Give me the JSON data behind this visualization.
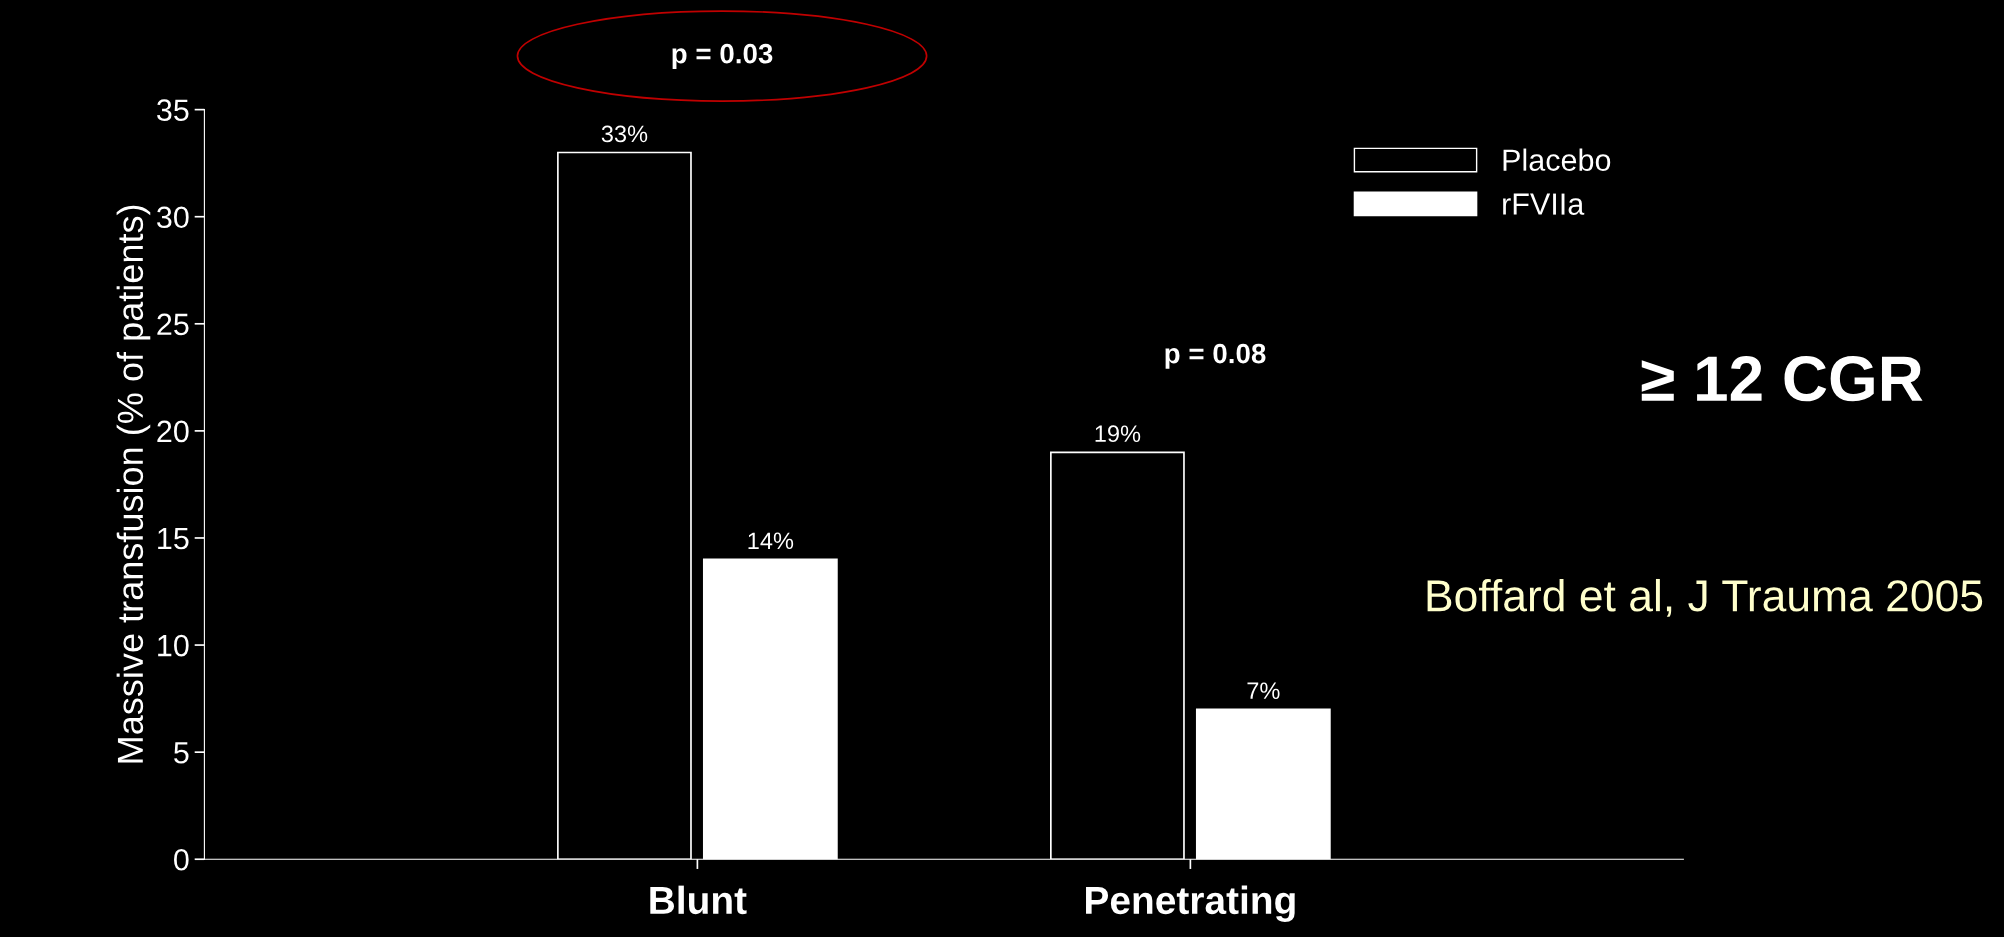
{
  "chart_data": {
    "type": "bar",
    "ylabel": "Massive transfusion (% of patients)",
    "categories": [
      "Blunt",
      "Penetrating"
    ],
    "series": [
      {
        "name": "Placebo",
        "color": "#000000",
        "values": [
          33,
          19
        ],
        "value_labels": [
          "33%",
          "19%"
        ]
      },
      {
        "name": "rFVIIa",
        "color": "#ffffff",
        "values": [
          14,
          7
        ],
        "value_labels": [
          "14%",
          "7%"
        ]
      }
    ],
    "ylim": [
      0,
      35
    ],
    "yticks": [
      0,
      5,
      10,
      15,
      20,
      25,
      30,
      35
    ],
    "grid": false,
    "legend": "top right",
    "annotations": [
      "p = 0.03",
      "p = 0.08",
      "≥ 12 CGR",
      "Boffard et al, J Trauma 2005"
    ]
  }
}
